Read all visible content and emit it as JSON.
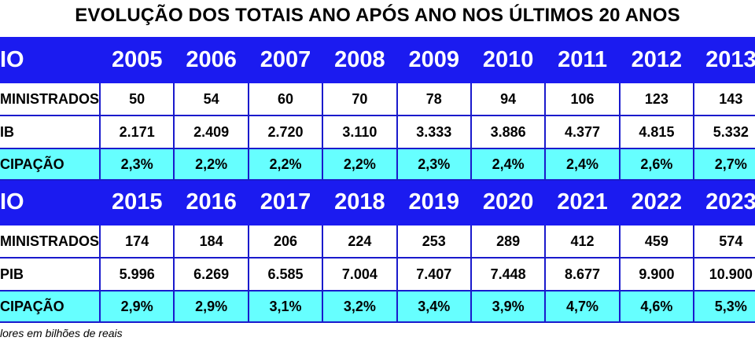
{
  "title": "EVOLUÇÃO DOS TOTAIS ANO APÓS ANO NOS ÚLTIMOS 20 ANOS",
  "note": "lores em bilhões de reais",
  "chart_data": {
    "type": "table",
    "title": "EVOLUÇÃO DOS TOTAIS ANO APÓS ANO NOS ÚLTIMOS 20 ANOS",
    "blocks": [
      {
        "header_label": "IO",
        "years": [
          "2005",
          "2006",
          "2007",
          "2008",
          "2009",
          "2010",
          "2011",
          "2012",
          "2013"
        ],
        "rows": [
          {
            "label": "MINISTRADOS",
            "values": [
              "50",
              "54",
              "60",
              "70",
              "78",
              "94",
              "106",
              "123",
              "143"
            ]
          },
          {
            "label": "IB",
            "values": [
              "2.171",
              "2.409",
              "2.720",
              "3.110",
              "3.333",
              "3.886",
              "4.377",
              "4.815",
              "5.332"
            ]
          },
          {
            "label": "CIPAÇÃO",
            "values": [
              "2,3%",
              "2,2%",
              "2,2%",
              "2,2%",
              "2,3%",
              "2,4%",
              "2,4%",
              "2,6%",
              "2,7%"
            ]
          }
        ]
      },
      {
        "header_label": "IO",
        "years": [
          "2015",
          "2016",
          "2017",
          "2018",
          "2019",
          "2020",
          "2021",
          "2022",
          "2023"
        ],
        "rows": [
          {
            "label": "MINISTRADOS",
            "values": [
              "174",
              "184",
              "206",
              "224",
              "253",
              "289",
              "412",
              "459",
              "574"
            ]
          },
          {
            "label": "PIB",
            "values": [
              "5.996",
              "6.269",
              "6.585",
              "7.004",
              "7.407",
              "7.448",
              "8.677",
              "9.900",
              "10.900"
            ]
          },
          {
            "label": "CIPAÇÃO",
            "values": [
              "2,9%",
              "2,9%",
              "3,1%",
              "3,2%",
              "3,4%",
              "3,9%",
              "4,7%",
              "4,6%",
              "5,3%"
            ]
          }
        ]
      }
    ]
  }
}
